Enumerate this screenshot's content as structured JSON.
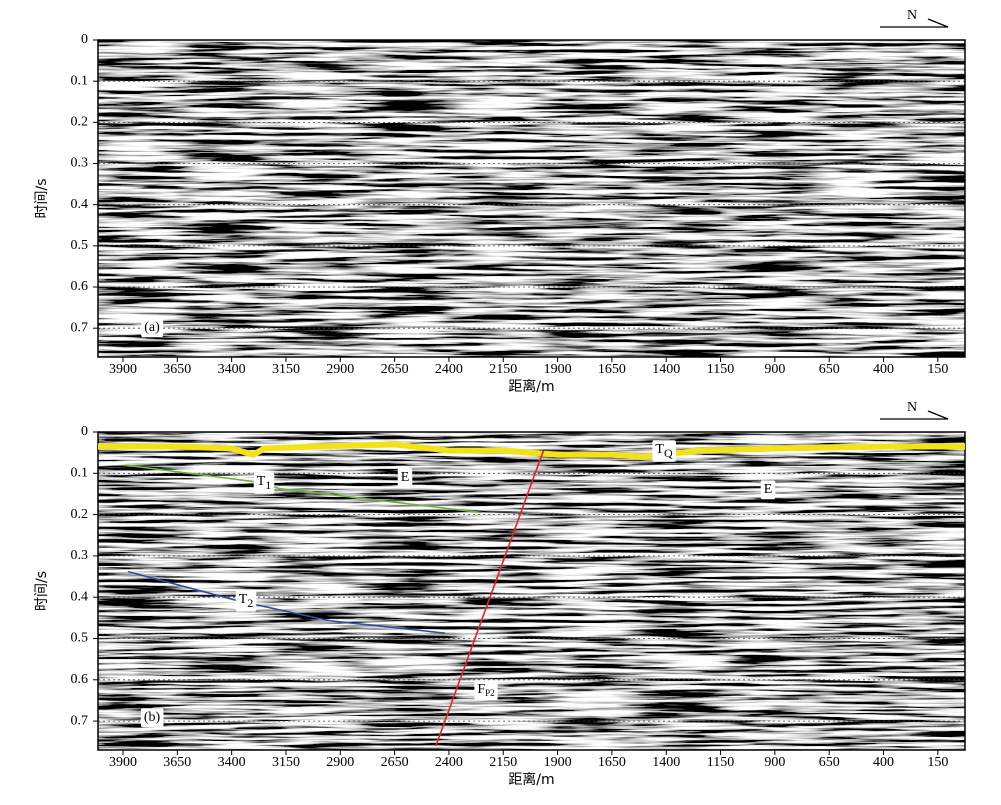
{
  "chart_data": [
    {
      "type": "seismic-section",
      "panel_label": "(a)",
      "north": "N",
      "xlabel": "距离/m",
      "ylabel": "时间/s",
      "xlim": [
        4015,
        25
      ],
      "xticks": [
        3900,
        3650,
        3400,
        3150,
        2900,
        2650,
        2400,
        2150,
        1900,
        1650,
        1400,
        1150,
        900,
        650,
        400,
        150
      ],
      "ylim": [
        0,
        0.77
      ],
      "yticks": [
        0,
        0.1,
        0.2,
        0.3,
        0.4,
        0.5,
        0.6,
        0.7
      ],
      "y_inverted": true,
      "grid": true
    },
    {
      "type": "seismic-section",
      "panel_label": "(b)",
      "north": "N",
      "xlabel": "距离/m",
      "ylabel": "时间/s",
      "xlim": [
        4015,
        25
      ],
      "xticks": [
        3900,
        3650,
        3400,
        3150,
        2900,
        2650,
        2400,
        2150,
        1900,
        1650,
        1400,
        1150,
        900,
        650,
        400,
        150
      ],
      "ylim": [
        0,
        0.77
      ],
      "yticks": [
        0,
        0.1,
        0.2,
        0.3,
        0.4,
        0.5,
        0.6,
        0.7
      ],
      "y_inverted": true,
      "grid": true,
      "horizons": [
        {
          "label": "T",
          "subscript": "Q",
          "color": "#f2e21b",
          "x": [
            4015,
            3650,
            3400,
            3300,
            3250,
            3000,
            2650,
            2400,
            2150,
            1900,
            1650,
            1500,
            1250,
            900,
            400,
            25
          ],
          "y": [
            0.035,
            0.035,
            0.04,
            0.055,
            0.04,
            0.035,
            0.03,
            0.045,
            0.045,
            0.055,
            0.055,
            0.06,
            0.045,
            0.04,
            0.035,
            0.035
          ]
        },
        {
          "label": "T",
          "subscript": "1",
          "color": "#6fb43a",
          "x": [
            3890,
            3300,
            3180,
            2250
          ],
          "y": [
            0.08,
            0.12,
            0.137,
            0.195
          ]
        },
        {
          "label": "T",
          "subscript": "2",
          "color": "#2f4fa8",
          "x": [
            3877,
            3362,
            2948,
            2418
          ],
          "y": [
            0.338,
            0.41,
            0.457,
            0.487
          ]
        },
        {
          "label": "F",
          "subscript": "P2",
          "color": "#e8202a",
          "x": [
            2460,
            1965
          ],
          "y": [
            0.76,
            0.045
          ]
        }
      ],
      "region_labels": [
        "E",
        "E"
      ]
    }
  ]
}
